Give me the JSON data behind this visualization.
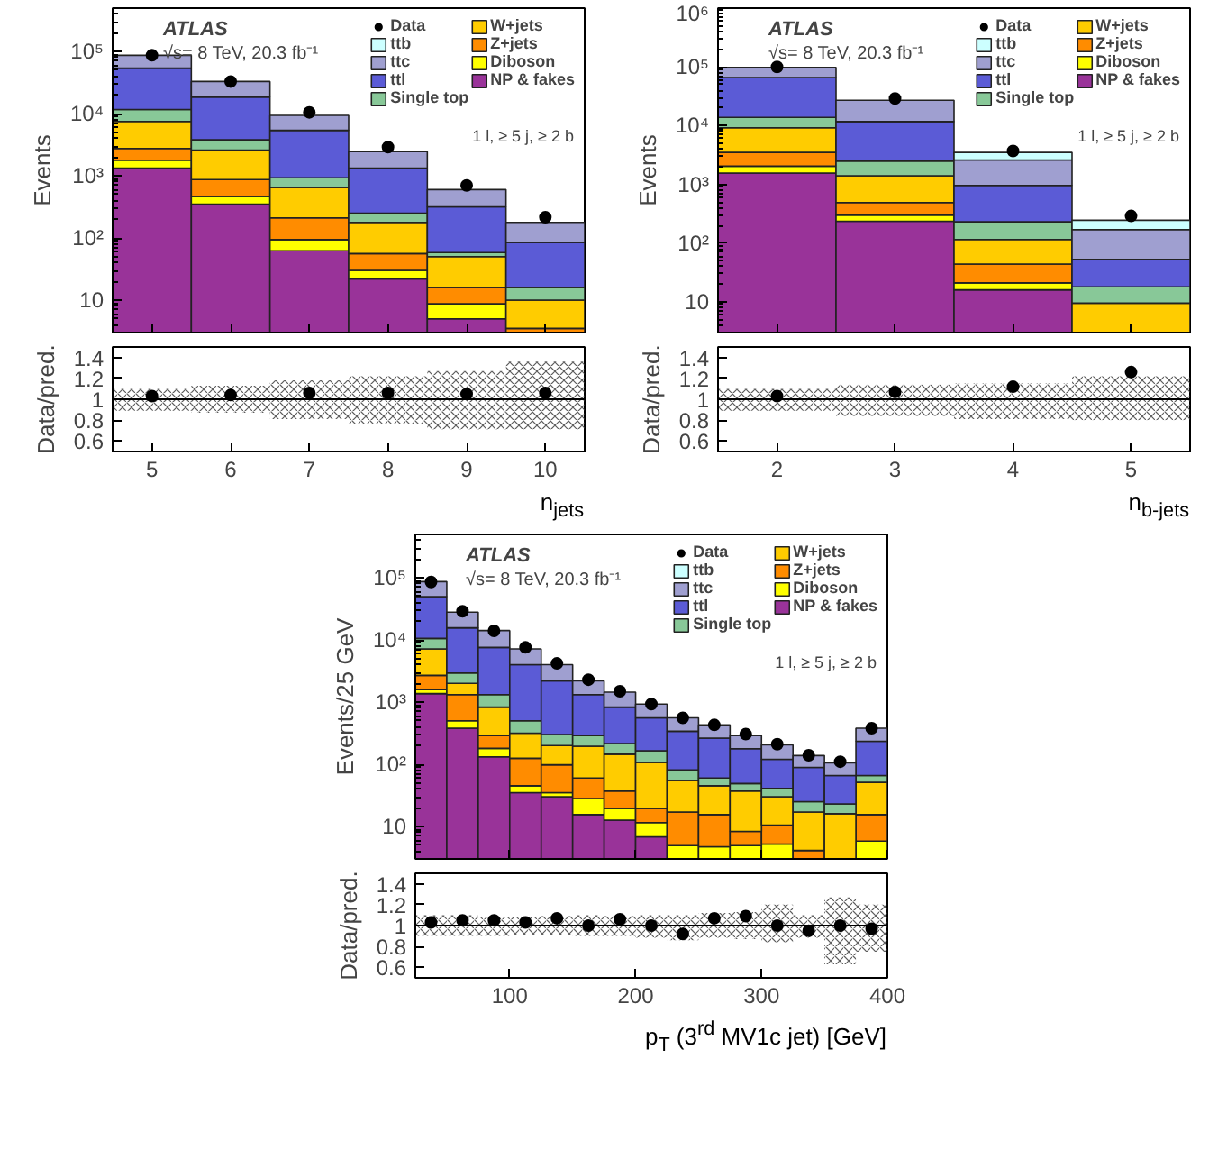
{
  "chart_data": [
    {
      "type": "bar",
      "stacked": true,
      "log": true,
      "x": [
        5,
        6,
        7,
        8,
        9,
        10
      ],
      "xlim": [
        4.5,
        10.5
      ],
      "xticks": [
        5,
        6,
        7,
        8,
        9,
        10
      ],
      "ylim": [
        3,
        500000
      ],
      "yticks": [
        10,
        {
          "value": 100,
          "label": "10²"
        },
        {
          "value": 1000,
          "label": "10³"
        },
        {
          "value": 10000,
          "label": "10⁴"
        },
        {
          "value": 100000,
          "label": "10⁵"
        }
      ],
      "ylabel": "Events",
      "tick_labels": "y",
      "legend": "top right",
      "marker": "circle",
      "annotations": [
        "ATLAS",
        "√s= 8 TeV, 20.3 fb⁻¹",
        "1 l, ≥ 5 j, ≥ 2 b"
      ],
      "series": [
        {
          "name": "NP & fakes",
          "color": "#993399",
          "values": [
            1330,
            350,
            62,
            22,
            5,
            null
          ]
        },
        {
          "name": "Diboson",
          "color": "#ffff00",
          "values": [
            450,
            115,
            32,
            8,
            3.7,
            null
          ]
        },
        {
          "name": "Z+jets",
          "color": "#ff8c00",
          "values": [
            970,
            405,
            116,
            26,
            7.3,
            3.5
          ]
        },
        {
          "name": "W+jets",
          "color": "#ffcc00",
          "values": [
            4750,
            1730,
            440,
            122,
            34,
            6.5
          ]
        },
        {
          "name": "Single top",
          "color": "#88c898",
          "values": [
            4200,
            1200,
            280,
            72,
            8,
            6
          ]
        },
        {
          "name": "ttl",
          "color": "#5b5bd6",
          "values": [
            42300,
            14700,
            4470,
            1080,
            258,
            69
          ]
        },
        {
          "name": "ttc",
          "color": "#9f9fd0",
          "values": [
            33000,
            14500,
            4000,
            1120,
            284,
            93
          ]
        },
        {
          "name": "ttb",
          "color": "#ccffff",
          "values": [
            null,
            null,
            null,
            null,
            null,
            null
          ]
        },
        {
          "name": "Data",
          "type": "scatter",
          "color": "#000000",
          "values": [
            87000,
            33000,
            10500,
            2900,
            700,
            215
          ]
        }
      ]
    },
    {
      "type": "bar",
      "x": [
        5,
        6,
        7,
        8,
        9,
        10
      ],
      "xlim": [
        4.5,
        10.5
      ],
      "xticks": [
        5,
        6,
        7,
        8,
        9,
        10
      ],
      "ylim": [
        0.5,
        1.5
      ],
      "yticks": [
        0.6,
        0.8,
        1,
        1.2,
        1.4
      ],
      "xlabel": "n$_{jets}$",
      "ylabel": "Data/pred.",
      "marker": "circle",
      "ref_lines": [
        {
          "axis": "y",
          "value": 1,
          "color": "#000000"
        }
      ],
      "series": [
        {
          "color": "#333333",
          "base": [
            0.89,
            0.87,
            0.81,
            0.76,
            0.71,
            0.71
          ],
          "values": [
            0.21,
            0.26,
            0.37,
            0.46,
            0.56,
            0.65
          ]
        },
        {
          "type": "scatter",
          "color": "#000000",
          "values": [
            1.03,
            1.04,
            1.06,
            1.06,
            1.05,
            1.06
          ]
        }
      ]
    },
    {
      "type": "bar",
      "stacked": true,
      "log": true,
      "x": [
        2,
        3,
        4,
        5
      ],
      "xlim": [
        1.5,
        5.5
      ],
      "xticks": [
        2,
        3,
        4,
        5
      ],
      "ylim": [
        3,
        1000000
      ],
      "yticks": [
        10,
        {
          "value": 100,
          "label": "10²"
        },
        {
          "value": 1000,
          "label": "10³"
        },
        {
          "value": 10000,
          "label": "10⁴"
        },
        {
          "value": 100000,
          "label": "10⁵"
        },
        {
          "value": 1000000,
          "label": "10⁶"
        }
      ],
      "ylabel": "Events",
      "tick_labels": "y",
      "legend": "top right",
      "marker": "circle",
      "annotations": [
        "ATLAS",
        "√s= 8 TeV, 20.3 fb⁻¹",
        "1 l, ≥ 5 j, ≥ 2 b"
      ],
      "series": [
        {
          "name": "NP & fakes",
          "color": "#993399",
          "values": [
            1560,
            235,
            16,
            null
          ]
        },
        {
          "name": "Diboson",
          "color": "#ffff00",
          "values": [
            480,
            65,
            5,
            null
          ]
        },
        {
          "name": "Z+jets",
          "color": "#ff8c00",
          "values": [
            1460,
            190,
            23,
            null
          ]
        },
        {
          "name": "W+jets",
          "color": "#ffcc00",
          "values": [
            5700,
            910,
            71,
            9.5
          ]
        },
        {
          "name": "Single top",
          "color": "#88c898",
          "values": [
            4600,
            1100,
            115,
            8.5
          ]
        },
        {
          "name": "ttl",
          "color": "#5b5bd6",
          "values": [
            52200,
            9200,
            730,
            35
          ]
        },
        {
          "name": "ttc",
          "color": "#9f9fd0",
          "values": [
            32000,
            15300,
            1640,
            117
          ]
        },
        {
          "name": "ttb",
          "color": "#ccffff",
          "values": [
            null,
            null,
            900,
            75
          ]
        },
        {
          "name": "Data",
          "type": "scatter",
          "color": "#000000",
          "values": [
            100000,
            29000,
            3700,
            290
          ]
        }
      ]
    },
    {
      "type": "bar",
      "x": [
        2,
        3,
        4,
        5
      ],
      "xlim": [
        1.5,
        5.5
      ],
      "xticks": [
        2,
        3,
        4,
        5
      ],
      "ylim": [
        0.5,
        1.5
      ],
      "yticks": [
        0.6,
        0.8,
        1,
        1.2,
        1.4
      ],
      "xlabel": "n$_{b-jets}$",
      "ylabel": "Data/pred.",
      "marker": "circle",
      "ref_lines": [
        {
          "axis": "y",
          "value": 1,
          "color": "#000000"
        }
      ],
      "series": [
        {
          "color": "#333333",
          "base": [
            0.89,
            0.84,
            0.81,
            0.8
          ],
          "values": [
            0.21,
            0.3,
            0.34,
            0.42
          ]
        },
        {
          "type": "scatter",
          "color": "#000000",
          "values": [
            1.03,
            1.07,
            1.12,
            1.26
          ]
        }
      ]
    },
    {
      "type": "bar",
      "stacked": true,
      "log": true,
      "x": [
        37.5,
        62.5,
        87.5,
        112.5,
        137.5,
        162.5,
        187.5,
        212.5,
        237.5,
        262.5,
        287.5,
        312.5,
        337.5,
        362.5,
        387.5
      ],
      "xlim": [
        25,
        400
      ],
      "xticks": [
        100,
        200,
        300,
        400
      ],
      "ylim": [
        3,
        500000
      ],
      "yticks": [
        10,
        {
          "value": 100,
          "label": "10²"
        },
        {
          "value": 1000,
          "label": "10³"
        },
        {
          "value": 10000,
          "label": "10⁴"
        },
        {
          "value": 100000,
          "label": "10⁵"
        }
      ],
      "ylabel": "Events/25 GeV",
      "tick_labels": "y",
      "legend": "top right",
      "marker": "circle",
      "annotations": [
        "ATLAS",
        "√s= 8 TeV, 20.3 fb⁻¹",
        "1 l, ≥ 5 j, ≥ 2 b"
      ],
      "series": [
        {
          "name": "NP & fakes",
          "color": "#993399",
          "values": [
            1370,
            380,
            132,
            35,
            30,
            15.5,
            12.6,
            6.8,
            null,
            null,
            null,
            null,
            null,
            null,
            null
          ]
        },
        {
          "name": "Diboson",
          "color": "#ffff00",
          "values": [
            220,
            120,
            48,
            10,
            5,
            12.5,
            6.9,
            4.7,
            4.9,
            4.7,
            4.9,
            5.2,
            null,
            null,
            5.8
          ]
        },
        {
          "name": "Z+jets",
          "color": "#ff8c00",
          "values": [
            1110,
            820,
            110,
            80,
            63,
            32,
            17.5,
            8,
            12.1,
            10.8,
            3.4,
            5.3,
            4.1,
            null,
            9.7
          ]
        },
        {
          "name": "W+jets",
          "color": "#ffcc00",
          "values": [
            4500,
            680,
            540,
            191,
            102,
            135,
            108,
            87.5,
            38,
            29.5,
            28.7,
            19.5,
            12.9,
            16,
            35.5
          ]
        },
        {
          "name": "Single top",
          "color": "#88c898",
          "values": [
            3400,
            950,
            490,
            184,
            100,
            95,
            70,
            58,
            26,
            15,
            12,
            11,
            8,
            7,
            15
          ]
        },
        {
          "name": "ttl",
          "color": "#5b5bd6",
          "values": [
            39400,
            12750,
            6280,
            3500,
            1900,
            1030,
            615,
            395,
            259,
            203,
            129,
            79,
            64,
            43,
            168
          ]
        },
        {
          "name": "ttc",
          "color": "#9f9fd0",
          "values": [
            37000,
            12300,
            6600,
            3200,
            1800,
            880,
            620,
            370,
            220,
            167,
            112,
            85,
            49,
            39,
            146
          ]
        },
        {
          "name": "ttb",
          "color": "#ccffff",
          "values": [
            null,
            null,
            null,
            null,
            null,
            null,
            null,
            null,
            null,
            null,
            null,
            null,
            null,
            null,
            null
          ]
        },
        {
          "name": "Data",
          "type": "scatter",
          "color": "#000000",
          "values": [
            86000,
            29000,
            14000,
            7600,
            4200,
            2300,
            1500,
            930,
            560,
            430,
            305,
            210,
            140,
            110,
            380
          ]
        }
      ]
    },
    {
      "type": "bar",
      "x": [
        37.5,
        62.5,
        87.5,
        112.5,
        137.5,
        162.5,
        187.5,
        212.5,
        237.5,
        262.5,
        287.5,
        312.5,
        337.5,
        362.5,
        387.5
      ],
      "xlim": [
        25,
        400
      ],
      "xticks": [
        100,
        200,
        300,
        400
      ],
      "ylim": [
        0.5,
        1.5
      ],
      "yticks": [
        0.6,
        0.8,
        1,
        1.2,
        1.4
      ],
      "xlabel": "p$_{T}$ (3$^{rd}$ MV1c jet) [GeV]",
      "ylabel": "Data/pred.",
      "marker": "circle",
      "ref_lines": [
        {
          "axis": "y",
          "value": 1,
          "color": "#000000"
        }
      ],
      "series": [
        {
          "color": "#333333",
          "base": [
            0.9,
            0.9,
            0.9,
            0.91,
            0.91,
            0.9,
            0.9,
            0.88,
            0.86,
            0.88,
            0.87,
            0.84,
            0.88,
            0.63,
            0.75
          ],
          "values": [
            0.2,
            0.2,
            0.18,
            0.17,
            0.18,
            0.2,
            0.19,
            0.22,
            0.24,
            0.24,
            0.26,
            0.36,
            0.22,
            0.64,
            0.45
          ]
        },
        {
          "type": "scatter",
          "color": "#000000",
          "values": [
            1.03,
            1.05,
            1.05,
            1.03,
            1.07,
            1.0,
            1.06,
            1.0,
            0.92,
            1.07,
            1.09,
            1.0,
            0.95,
            1.0,
            0.97
          ]
        }
      ]
    }
  ]
}
